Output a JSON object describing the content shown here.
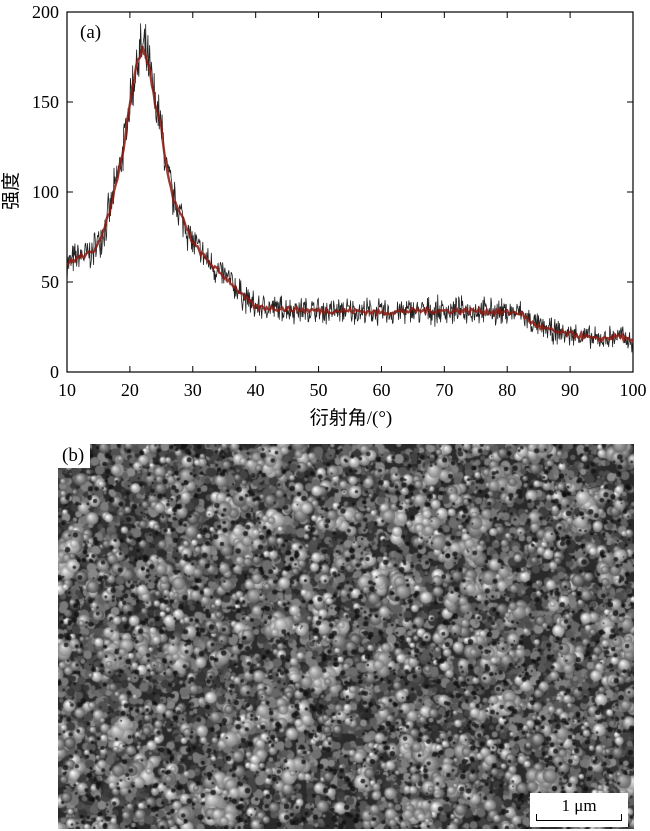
{
  "chart_data": {
    "type": "line",
    "panel_label": "(a)",
    "xlabel": "衍射角/(°)",
    "ylabel": "强度",
    "xlim": [
      10,
      100
    ],
    "ylim": [
      0,
      200
    ],
    "xticks": [
      10,
      20,
      30,
      40,
      50,
      60,
      70,
      80,
      90,
      100
    ],
    "yticks": [
      0,
      50,
      100,
      150,
      200
    ],
    "grid": false,
    "series": [
      {
        "color": "#8b1a10",
        "noise_color": "#222222",
        "x": [
          10,
          12,
          14,
          16,
          17,
          18,
          19,
          20,
          21,
          22,
          23,
          24,
          25,
          26,
          27,
          28,
          30,
          32,
          34,
          36,
          38,
          40,
          45,
          50,
          55,
          60,
          65,
          70,
          75,
          80,
          82,
          84,
          86,
          88,
          90,
          92,
          94,
          96,
          98,
          100
        ],
        "y": [
          60,
          64,
          66,
          80,
          92,
          108,
          125,
          150,
          170,
          180,
          170,
          150,
          135,
          110,
          95,
          88,
          72,
          63,
          56,
          50,
          42,
          36,
          35,
          34,
          34,
          33,
          34,
          34,
          34,
          33,
          33,
          27,
          24,
          22,
          21,
          20,
          18,
          19,
          20,
          16
        ]
      }
    ]
  },
  "sem": {
    "panel_label": "(b)",
    "scale_bar_label": "1 μm"
  }
}
